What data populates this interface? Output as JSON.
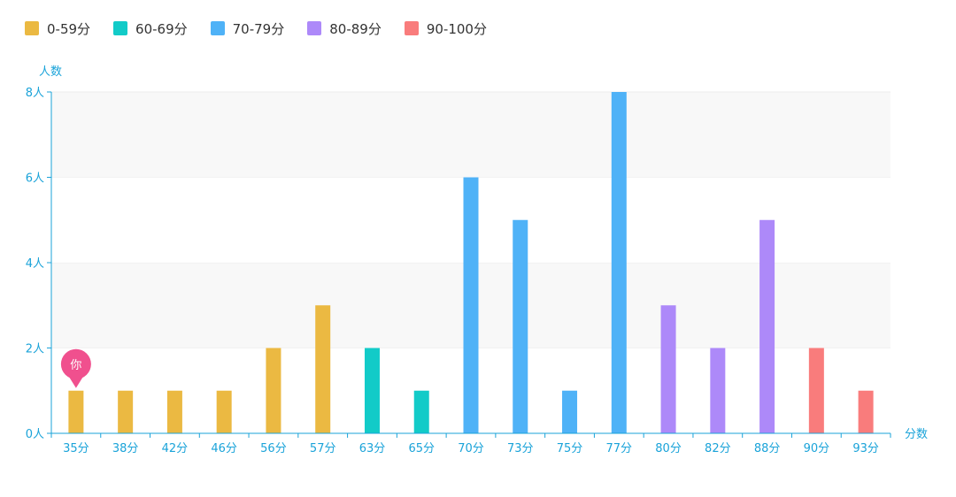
{
  "chart_data": {
    "type": "bar",
    "xlabel": "分数",
    "ylabel": "人数",
    "ylim": [
      0,
      8
    ],
    "yticks": [
      "0人",
      "2人",
      "4人",
      "6人",
      "8人"
    ],
    "grid": "horizontal bands",
    "legend_position": "top-left",
    "legend": [
      {
        "name": "0-59分",
        "color": "#ebb942"
      },
      {
        "name": "60-69分",
        "color": "#12cbc8"
      },
      {
        "name": "70-79分",
        "color": "#4fb2f7"
      },
      {
        "name": "80-89分",
        "color": "#ad89f9"
      },
      {
        "name": "90-100分",
        "color": "#f97c7c"
      }
    ],
    "categories": [
      "35分",
      "38分",
      "42分",
      "46分",
      "56分",
      "57分",
      "63分",
      "65分",
      "70分",
      "73分",
      "75分",
      "77分",
      "80分",
      "82分",
      "88分",
      "90分",
      "93分"
    ],
    "values": [
      1,
      1,
      1,
      1,
      2,
      3,
      2,
      1,
      6,
      5,
      1,
      8,
      3,
      2,
      5,
      2,
      1
    ],
    "groups": [
      0,
      0,
      0,
      0,
      0,
      0,
      1,
      1,
      2,
      2,
      2,
      2,
      3,
      3,
      3,
      4,
      4
    ],
    "marker": {
      "label": "你",
      "category": "35分",
      "color": "#f0508e"
    }
  }
}
